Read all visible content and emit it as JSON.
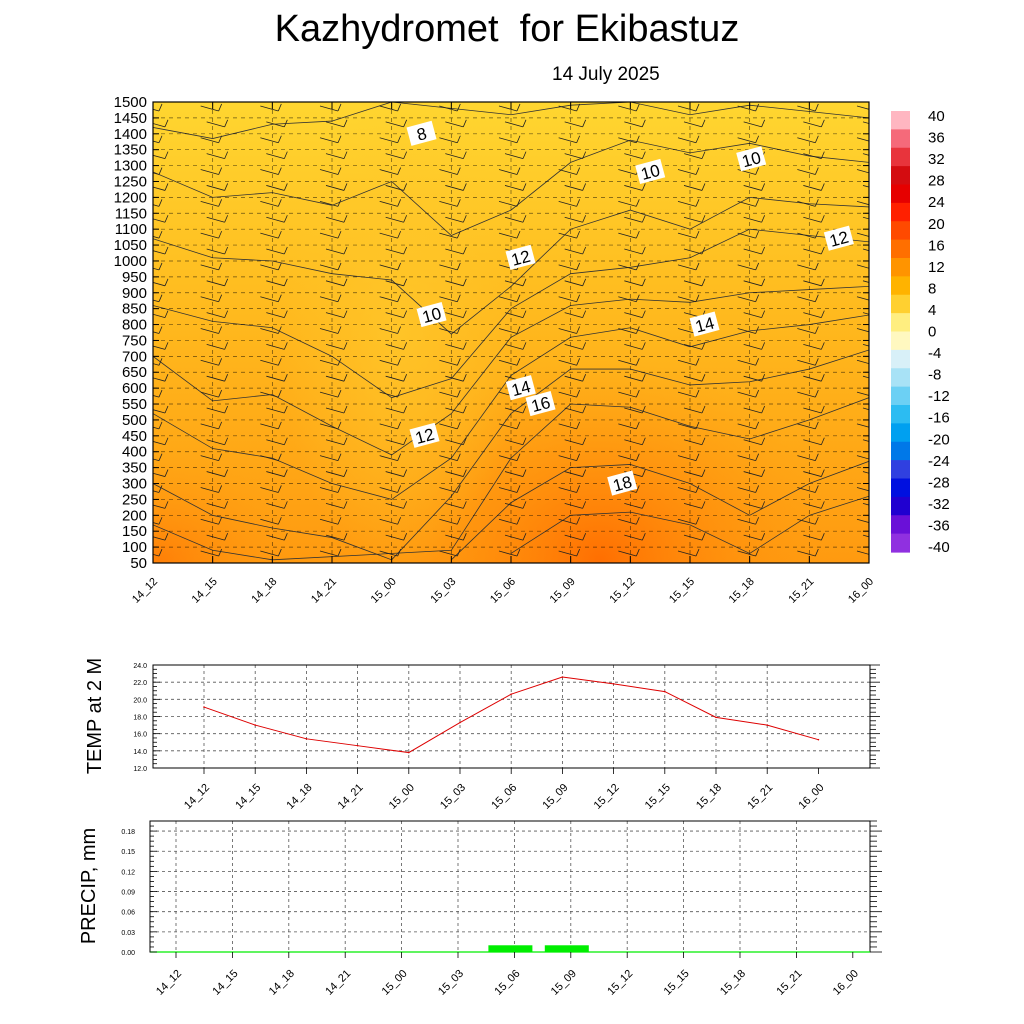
{
  "header": {
    "title": "Kazhydromet  for Ekibastuz",
    "date": "14 July 2025"
  },
  "time_labels": [
    "14_12",
    "14_15",
    "14_18",
    "14_21",
    "15_00",
    "15_03",
    "15_06",
    "15_09",
    "15_12",
    "15_15",
    "15_18",
    "15_21",
    "16_00"
  ],
  "chart_data": [
    {
      "type": "heatmap",
      "title": "",
      "xlabel": "",
      "ylabel": "",
      "x": [
        "14_12",
        "14_15",
        "14_18",
        "14_21",
        "15_00",
        "15_03",
        "15_06",
        "15_09",
        "15_12",
        "15_15",
        "15_18",
        "15_21",
        "16_00"
      ],
      "y_ticks": [
        50,
        100,
        150,
        200,
        250,
        300,
        350,
        400,
        450,
        500,
        550,
        600,
        650,
        700,
        750,
        800,
        850,
        900,
        950,
        1000,
        1050,
        1100,
        1150,
        1200,
        1250,
        1300,
        1350,
        1400,
        1450,
        1500
      ],
      "ylim": [
        50,
        1500
      ],
      "colorbar": {
        "labels": [
          "40",
          "36",
          "32",
          "28",
          "24",
          "20",
          "16",
          "12",
          "8",
          "4",
          "0",
          "-4",
          "-8",
          "-12",
          "-16",
          "-20",
          "-24",
          "-28",
          "-32",
          "-36",
          "-40"
        ],
        "range": [
          -40,
          40
        ]
      },
      "contour_labels": [
        {
          "text": "8",
          "x": "15_00",
          "y": 1400
        },
        {
          "text": "10",
          "x": "15_12",
          "y": 1280
        },
        {
          "text": "10",
          "x": "15_21",
          "y": 1320
        },
        {
          "text": "12",
          "x": "16_00",
          "y": 1070
        },
        {
          "text": "12",
          "x": "15_09",
          "y": 1010
        },
        {
          "text": "10",
          "x": "15_00",
          "y": 830
        },
        {
          "text": "14",
          "x": "15_18",
          "y": 800
        },
        {
          "text": "14",
          "x": "15_06",
          "y": 600
        },
        {
          "text": "16",
          "x": "15_09",
          "y": 550
        },
        {
          "text": "12",
          "x": "15_00",
          "y": 450
        },
        {
          "text": "18",
          "x": "15_12",
          "y": 300
        }
      ],
      "grid": true
    },
    {
      "type": "line",
      "title": "",
      "ylabel": "TEMP at 2 M",
      "categories": [
        "14_12",
        "14_15",
        "14_18",
        "14_21",
        "15_00",
        "15_03",
        "15_06",
        "15_09",
        "15_12",
        "15_15",
        "15_18",
        "15_21",
        "16_00"
      ],
      "series": [
        {
          "values": [
            19.1,
            17.0,
            15.4,
            14.6,
            13.8,
            17.3,
            20.6,
            22.6,
            21.8,
            20.9,
            17.9,
            17.0,
            15.3
          ]
        }
      ],
      "y_ticks": [
        "24.0",
        "22.0",
        "20.0",
        "18.0",
        "16.0",
        "14.0",
        "12.0"
      ],
      "ylim": [
        12,
        24
      ],
      "grid": true,
      "color": "#dd0000"
    },
    {
      "type": "bar",
      "title": "",
      "ylabel": "PRECIP, mm",
      "categories": [
        "14_12",
        "14_15",
        "14_18",
        "14_21",
        "15_00",
        "15_03",
        "15_06",
        "15_09",
        "15_12",
        "15_15",
        "15_18",
        "15_21",
        "16_00"
      ],
      "values": [
        0,
        0,
        0,
        0,
        0,
        0,
        0.01,
        0.01,
        0,
        0,
        0,
        0,
        0
      ],
      "y_ticks": [
        "0.18",
        "0.15",
        "0.12",
        "0.09",
        "0.06",
        "0.03",
        "0.00"
      ],
      "ylim": [
        0,
        0.195
      ],
      "grid": true,
      "color": "#00ee00"
    }
  ]
}
